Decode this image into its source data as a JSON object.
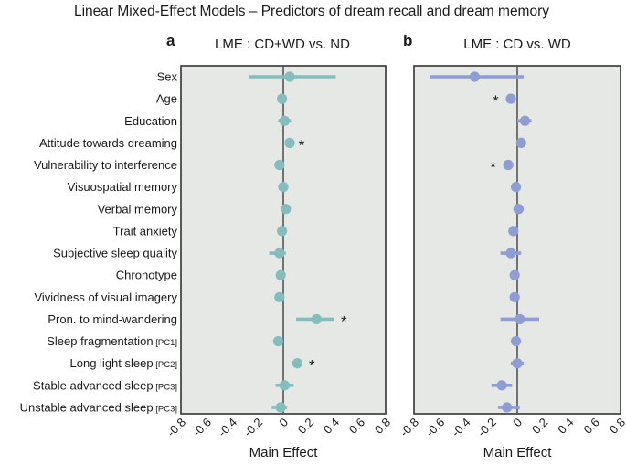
{
  "title": "Linear Mixed-Effect Models – Predictors of dream recall and dream memory",
  "chart_data": {
    "type": "forest",
    "xlabel": "Main Effect",
    "xlim": [
      -0.8,
      0.8
    ],
    "xticks": [
      "-0.8",
      "-0.6",
      "-0.4",
      "-0.2",
      "0",
      "0.2",
      "0.4",
      "0.6",
      "0.8"
    ],
    "xtick_values": [
      -0.8,
      -0.6,
      -0.4,
      -0.2,
      0,
      0.2,
      0.4,
      0.6,
      0.8
    ],
    "reference_line": 0,
    "grid": false,
    "predictors": [
      {
        "label": "Sex",
        "tag": ""
      },
      {
        "label": "Age",
        "tag": ""
      },
      {
        "label": "Education",
        "tag": ""
      },
      {
        "label": "Attitude towards dreaming",
        "tag": ""
      },
      {
        "label": "Vulnerability to interference",
        "tag": ""
      },
      {
        "label": "Visuospatial memory",
        "tag": ""
      },
      {
        "label": "Verbal memory",
        "tag": ""
      },
      {
        "label": "Trait anxiety",
        "tag": ""
      },
      {
        "label": "Subjective sleep quality",
        "tag": ""
      },
      {
        "label": "Chronotype",
        "tag": ""
      },
      {
        "label": "Vividness of visual imagery",
        "tag": ""
      },
      {
        "label": "Pron. to mind-wandering",
        "tag": ""
      },
      {
        "label": "Sleep fragmentation",
        "tag": "[PC1]"
      },
      {
        "label": "Long light sleep",
        "tag": "[PC2]"
      },
      {
        "label": "Stable advanced sleep",
        "tag": "[PC3]"
      },
      {
        "label": "Unstable advanced sleep",
        "tag": "[PC3]"
      }
    ],
    "panels": [
      {
        "letter": "a",
        "title": "LME : CD+WD vs. ND",
        "color": "#84bdbd",
        "estimates": [
          0.05,
          -0.01,
          0.01,
          0.05,
          -0.03,
          0.0,
          0.02,
          -0.01,
          -0.03,
          -0.02,
          -0.03,
          0.26,
          -0.04,
          0.11,
          0.01,
          -0.02
        ],
        "ci_low": [
          -0.27,
          -0.03,
          -0.04,
          0.03,
          -0.05,
          -0.02,
          0.0,
          -0.03,
          -0.11,
          -0.04,
          -0.05,
          0.1,
          -0.06,
          0.07,
          -0.06,
          -0.09
        ],
        "ci_high": [
          0.41,
          0.01,
          0.06,
          0.07,
          -0.01,
          0.02,
          0.04,
          0.01,
          0.02,
          0.0,
          -0.01,
          0.4,
          -0.02,
          0.15,
          0.08,
          0.03
        ],
        "significant": [
          false,
          false,
          false,
          true,
          false,
          false,
          false,
          false,
          false,
          false,
          false,
          true,
          false,
          true,
          false,
          false
        ]
      },
      {
        "letter": "b",
        "title": "LME : CD vs. WD",
        "color": "#8e9ed5",
        "estimates": [
          -0.33,
          -0.05,
          0.06,
          0.03,
          -0.07,
          -0.01,
          0.01,
          -0.03,
          -0.05,
          -0.02,
          -0.02,
          0.02,
          -0.01,
          0.0,
          -0.12,
          -0.08
        ],
        "ci_low": [
          -0.68,
          -0.07,
          0.0,
          0.0,
          -0.09,
          -0.03,
          -0.03,
          -0.05,
          -0.13,
          -0.04,
          -0.04,
          -0.13,
          -0.03,
          -0.05,
          -0.2,
          -0.15
        ],
        "ci_high": [
          0.05,
          -0.03,
          0.11,
          0.06,
          -0.05,
          0.01,
          0.05,
          -0.01,
          0.03,
          0.0,
          0.0,
          0.17,
          0.01,
          0.05,
          -0.04,
          0.02
        ],
        "significant": [
          false,
          true,
          false,
          false,
          true,
          false,
          false,
          false,
          false,
          false,
          false,
          false,
          false,
          false,
          false,
          false
        ]
      }
    ],
    "significance_marker": "*"
  }
}
